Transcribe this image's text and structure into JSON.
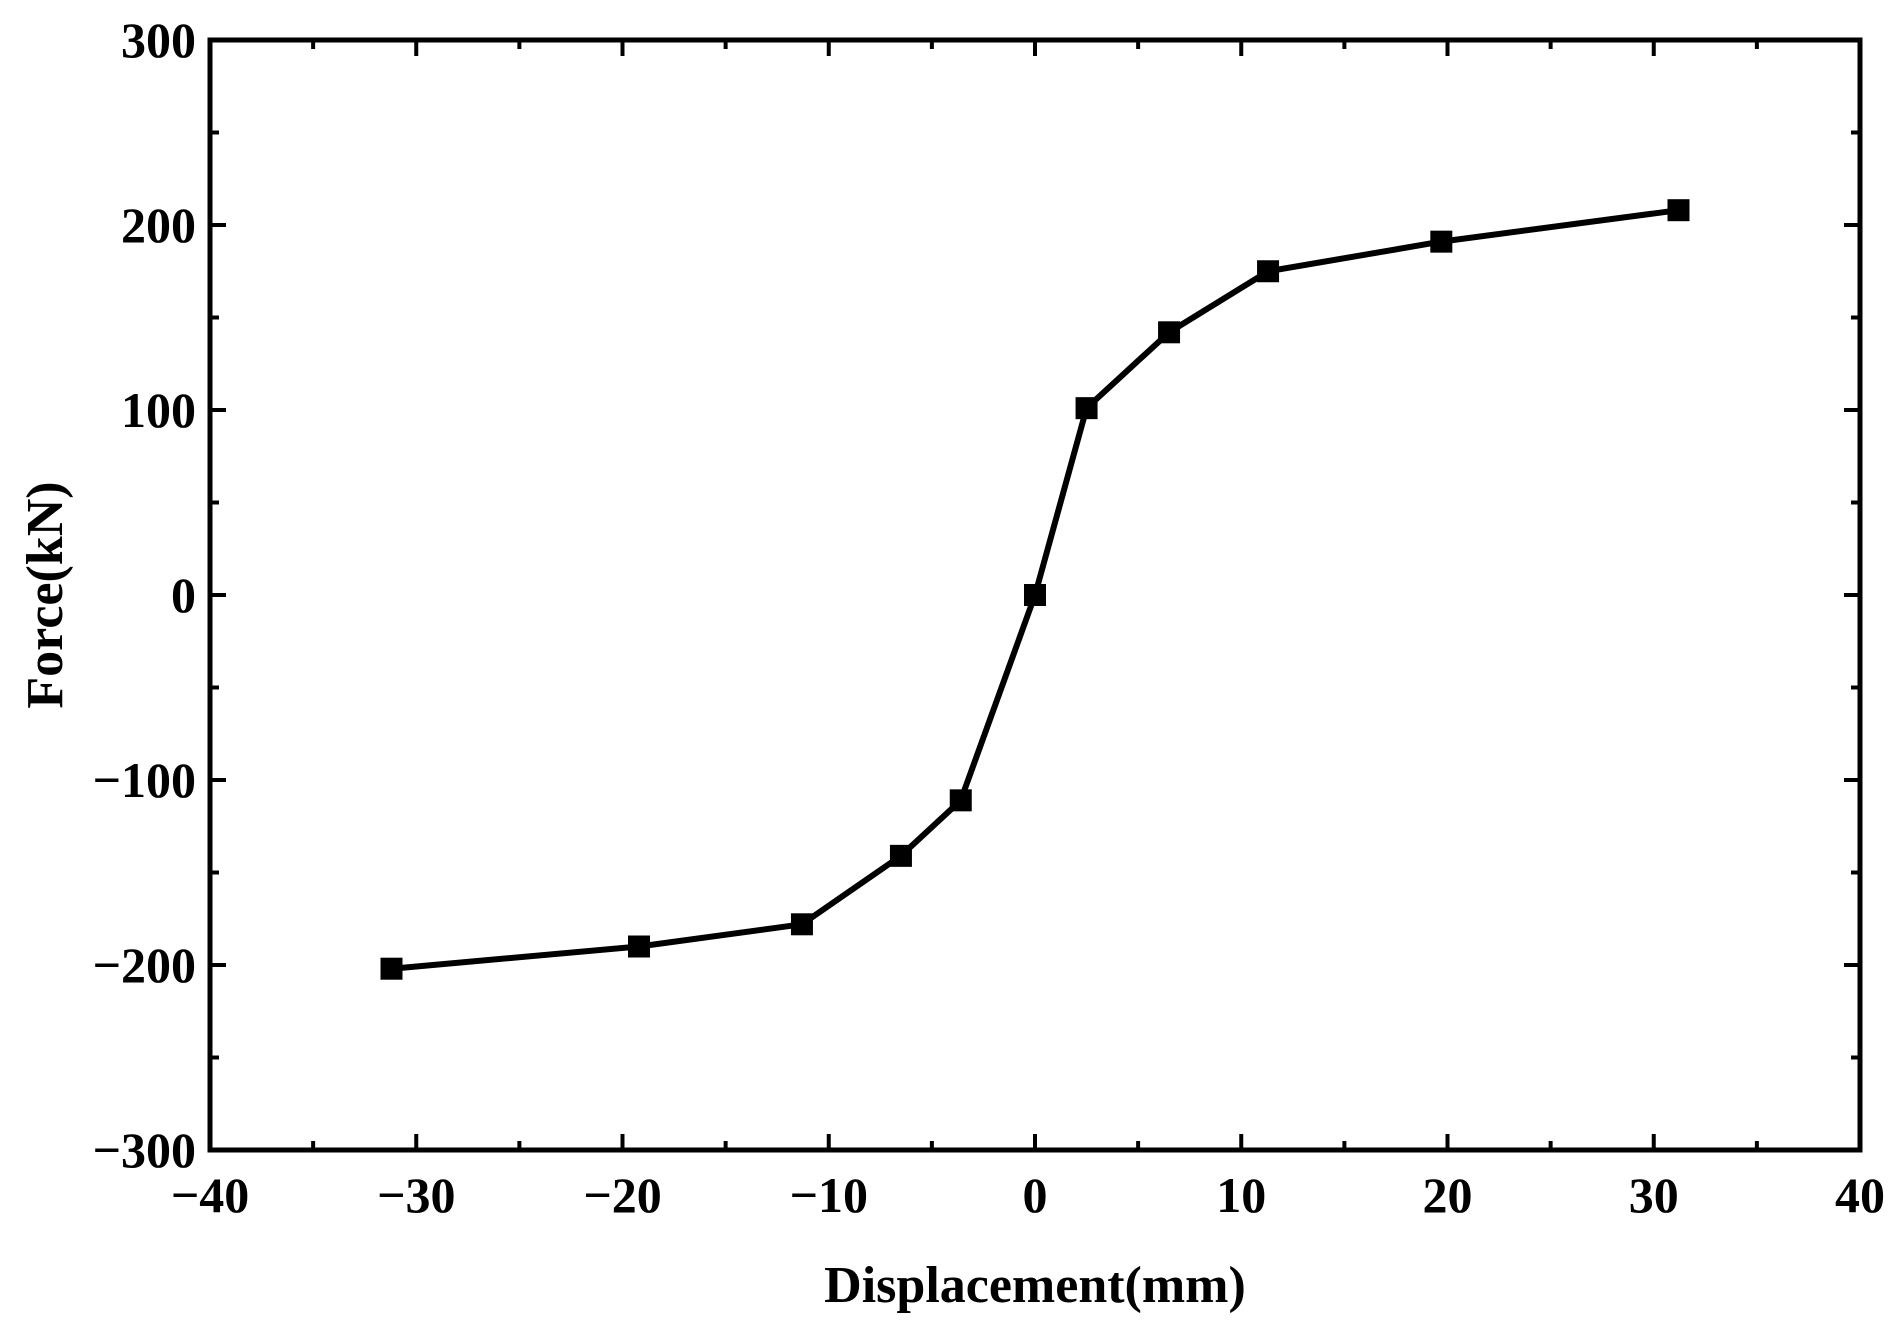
{
  "chart_data": {
    "type": "line",
    "title": "",
    "xlabel": "Displacement(mm)",
    "ylabel": "Force(kN)",
    "xlim": [
      -40,
      40
    ],
    "ylim": [
      -300,
      300
    ],
    "xticks": [
      -40,
      -30,
      -20,
      -10,
      0,
      10,
      20,
      30,
      40
    ],
    "yticks": [
      -300,
      -200,
      -100,
      0,
      100,
      200,
      300
    ],
    "xtick_labels": [
      "−40",
      "−30",
      "−20",
      "−10",
      "0",
      "10",
      "20",
      "30",
      "40"
    ],
    "ytick_labels": [
      "−300",
      "−200",
      "−100",
      "0",
      "100",
      "200",
      "300"
    ],
    "grid": false,
    "legend": "none",
    "series": [
      {
        "marker": "square",
        "color": "#000000",
        "x": [
          -31.2,
          -19.2,
          -11.3,
          -6.5,
          -3.6,
          0,
          2.5,
          6.5,
          11.3,
          19.7,
          31.2
        ],
        "y": [
          -202,
          -190,
          -178,
          -141,
          -111,
          0,
          101,
          142,
          175,
          191,
          208
        ]
      }
    ]
  }
}
